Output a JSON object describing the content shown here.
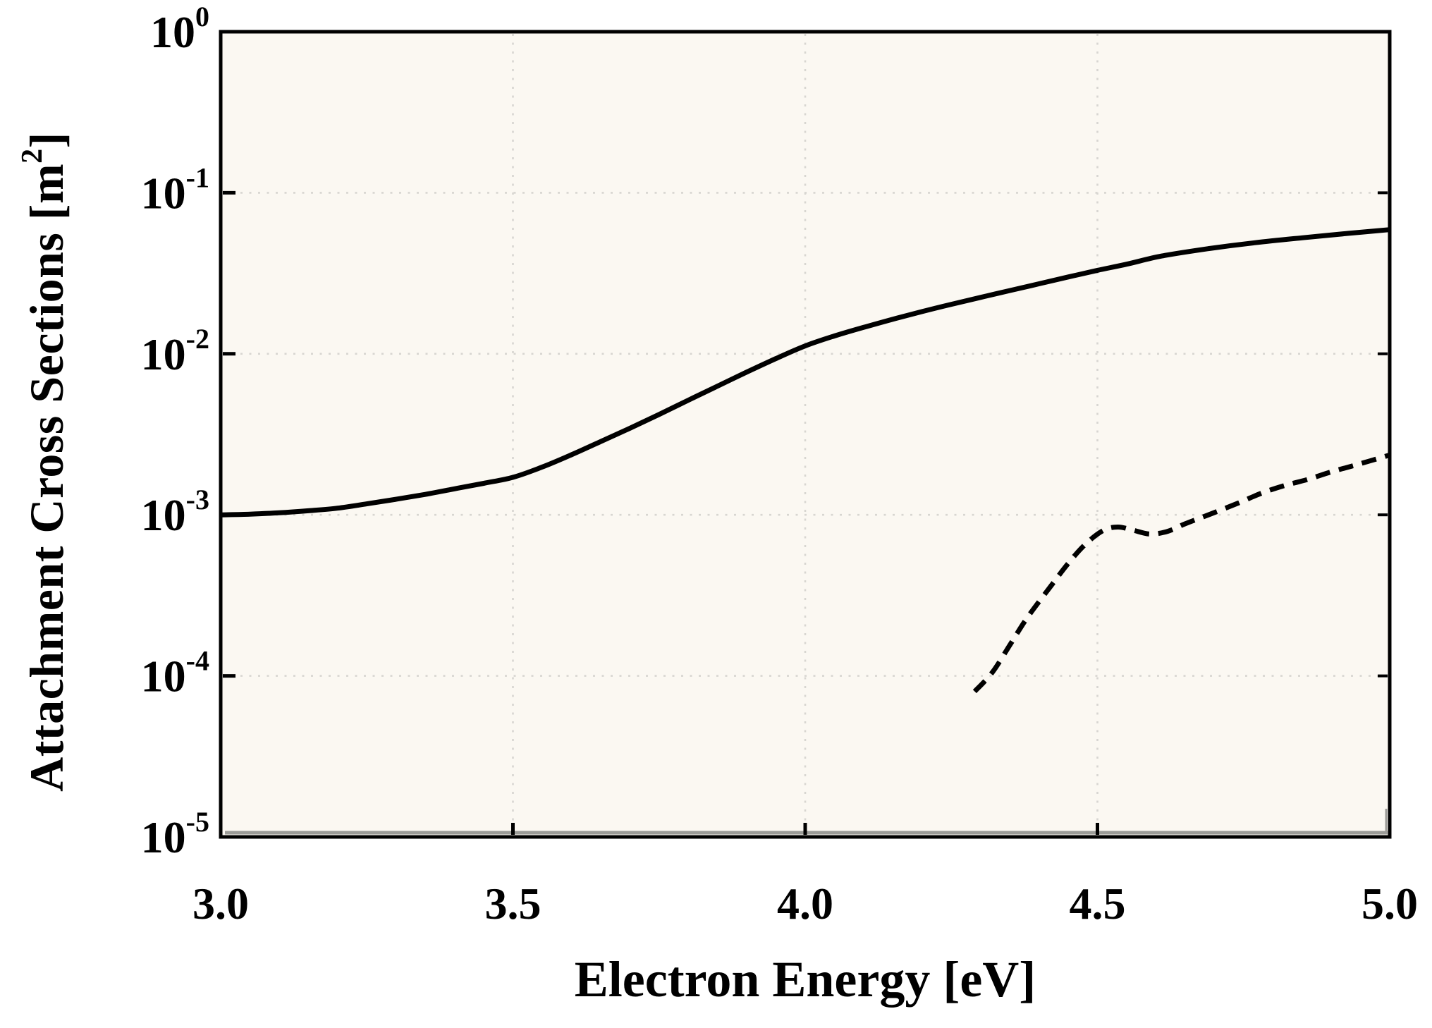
{
  "figure": {
    "background": "#ffffff",
    "plot_background": "#fbf8f2",
    "frame_color": "#000000",
    "inner_shadow_color": "#9c9c98",
    "grid_color": "#d8d6d1",
    "curve_color": "#000000",
    "text_color": "#000000"
  },
  "chart_data": {
    "type": "line",
    "title": "",
    "xlabel": "Electron Energy [eV]",
    "ylabel": "Attachment Cross Sections [m²]",
    "ylabel_parts": {
      "pre": "Attachment Cross Sections [m",
      "sup": "2",
      "post": "]"
    },
    "legend_position": "none",
    "grid": "dotted",
    "x_axis": {
      "min": 3.0,
      "max": 5.0,
      "tick_values": [
        3.0,
        3.5,
        4.0,
        4.5,
        5.0
      ],
      "tick_labels": [
        "3.0",
        "3.5",
        "4.0",
        "4.5",
        "5.0"
      ],
      "grid_values": [
        3.5,
        4.0,
        4.5
      ]
    },
    "y_axis": {
      "scale": "log",
      "min": 1e-05,
      "max": 1,
      "tick_base": "10",
      "tick_exponents": [
        "0",
        "-1",
        "-2",
        "-3",
        "-4",
        "-5"
      ],
      "grid_exponents": [
        -1,
        -2,
        -3,
        -4
      ]
    },
    "series": [
      {
        "name": "solid-curve",
        "line_style": "solid",
        "points": [
          [
            3.0,
            0.001
          ],
          [
            3.05,
            0.00101
          ],
          [
            3.1,
            0.00103
          ],
          [
            3.15,
            0.00106
          ],
          [
            3.2,
            0.0011
          ],
          [
            3.25,
            0.00117
          ],
          [
            3.3,
            0.00125
          ],
          [
            3.35,
            0.00134
          ],
          [
            3.4,
            0.00145
          ],
          [
            3.45,
            0.00157
          ],
          [
            3.5,
            0.00171
          ],
          [
            3.55,
            0.00198
          ],
          [
            3.6,
            0.00236
          ],
          [
            3.65,
            0.00285
          ],
          [
            3.7,
            0.00345
          ],
          [
            3.75,
            0.0042
          ],
          [
            3.8,
            0.00515
          ],
          [
            3.85,
            0.0063
          ],
          [
            3.9,
            0.0077
          ],
          [
            3.95,
            0.00935
          ],
          [
            4.0,
            0.0112
          ],
          [
            4.05,
            0.0129
          ],
          [
            4.1,
            0.0146
          ],
          [
            4.15,
            0.0164
          ],
          [
            4.2,
            0.0183
          ],
          [
            4.25,
            0.0203
          ],
          [
            4.3,
            0.0224
          ],
          [
            4.35,
            0.0247
          ],
          [
            4.4,
            0.0272
          ],
          [
            4.45,
            0.03
          ],
          [
            4.5,
            0.033
          ],
          [
            4.55,
            0.036
          ],
          [
            4.61,
            0.0405
          ],
          [
            4.69,
            0.045
          ],
          [
            4.77,
            0.049
          ],
          [
            4.85,
            0.0525
          ],
          [
            4.93,
            0.056
          ],
          [
            5.0,
            0.059
          ]
        ]
      },
      {
        "name": "dashed-curve",
        "line_style": "dashed",
        "points": [
          [
            4.29,
            8e-05
          ],
          [
            4.32,
            0.000105
          ],
          [
            4.35,
            0.000155
          ],
          [
            4.38,
            0.00023
          ],
          [
            4.42,
            0.00036
          ],
          [
            4.45,
            0.0005
          ],
          [
            4.48,
            0.00066
          ],
          [
            4.51,
            0.0008
          ],
          [
            4.535,
            0.00084
          ],
          [
            4.56,
            0.000805
          ],
          [
            4.59,
            0.00076
          ],
          [
            4.62,
            0.00079
          ],
          [
            4.65,
            0.00088
          ],
          [
            4.69,
            0.001
          ],
          [
            4.74,
            0.00118
          ],
          [
            4.78,
            0.00136
          ],
          [
            4.82,
            0.00152
          ],
          [
            4.86,
            0.00166
          ],
          [
            4.9,
            0.00185
          ],
          [
            4.94,
            0.00203
          ],
          [
            5.0,
            0.00235
          ]
        ]
      }
    ]
  }
}
